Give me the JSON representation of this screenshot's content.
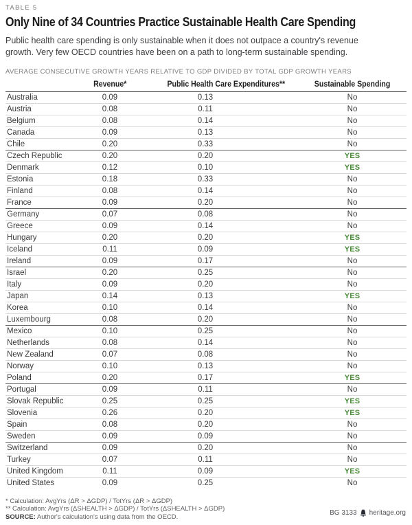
{
  "page": {
    "table_label": "TABLE 5",
    "title": "Only Nine of 34 Countries Practice Sustainable Health Care Spending",
    "subtitle_lines": [
      "Public health care spending is only sustainable when it does not outpace a country's revenue",
      "growth. Very few OECD countries have been on a path to long-term sustainable spending."
    ],
    "eyebrow": "AVERAGE CONSECUTIVE GROWTH YEARS RELATIVE TO GDP DIVIDED BY TOTAL GDP GROWTH YEARS"
  },
  "chart_data": {
    "type": "table",
    "title": "Only Nine of 34 Countries Practice Sustainable Health Care Spending",
    "subtitle": "Public health care spending is only sustainable when it does not outpace a country's revenue growth. Very few OECD countries have been on a path to long-term sustainable spending.",
    "metric_note": "Average consecutive growth years relative to GDP divided by total GDP growth years",
    "columns": [
      "",
      "Revenue*",
      "Public Health Care Expenditures**",
      "Sustainable Spending"
    ],
    "rows": [
      [
        "Australia",
        "0.09",
        "0.13",
        "No"
      ],
      [
        "Austria",
        "0.08",
        "0.11",
        "No"
      ],
      [
        "Belgium",
        "0.08",
        "0.14",
        "No"
      ],
      [
        "Canada",
        "0.09",
        "0.13",
        "No"
      ],
      [
        "Chile",
        "0.20",
        "0.33",
        "No"
      ],
      [
        "Czech Republic",
        "0.20",
        "0.20",
        "YES"
      ],
      [
        "Denmark",
        "0.12",
        "0.10",
        "YES"
      ],
      [
        "Estonia",
        "0.18",
        "0.33",
        "No"
      ],
      [
        "Finland",
        "0.08",
        "0.14",
        "No"
      ],
      [
        "France",
        "0.09",
        "0.20",
        "No"
      ],
      [
        "Germany",
        "0.07",
        "0.08",
        "No"
      ],
      [
        "Greece",
        "0.09",
        "0.14",
        "No"
      ],
      [
        "Hungary",
        "0.20",
        "0.20",
        "YES"
      ],
      [
        "Iceland",
        "0.11",
        "0.09",
        "YES"
      ],
      [
        "Ireland",
        "0.09",
        "0.17",
        "No"
      ],
      [
        "Israel",
        "0.20",
        "0.25",
        "No"
      ],
      [
        "Italy",
        "0.09",
        "0.20",
        "No"
      ],
      [
        "Japan",
        "0.14",
        "0.13",
        "YES"
      ],
      [
        "Korea",
        "0.10",
        "0.14",
        "No"
      ],
      [
        "Luxembourg",
        "0.08",
        "0.20",
        "No"
      ],
      [
        "Mexico",
        "0.10",
        "0.25",
        "No"
      ],
      [
        "Netherlands",
        "0.08",
        "0.14",
        "No"
      ],
      [
        "New Zealand",
        "0.07",
        "0.08",
        "No"
      ],
      [
        "Norway",
        "0.10",
        "0.13",
        "No"
      ],
      [
        "Poland",
        "0.20",
        "0.17",
        "YES"
      ],
      [
        "Portugal",
        "0.09",
        "0.11",
        "No"
      ],
      [
        "Slovak Republic",
        "0.25",
        "0.25",
        "YES"
      ],
      [
        "Slovenia",
        "0.26",
        "0.20",
        "YES"
      ],
      [
        "Spain",
        "0.08",
        "0.20",
        "No"
      ],
      [
        "Sweden",
        "0.09",
        "0.09",
        "No"
      ],
      [
        "Switzerland",
        "0.09",
        "0.20",
        "No"
      ],
      [
        "Turkey",
        "0.07",
        "0.11",
        "No"
      ],
      [
        "United Kingdom",
        "0.11",
        "0.09",
        "YES"
      ],
      [
        "United States",
        "0.09",
        "0.25",
        "No"
      ]
    ],
    "group_end_indices": [
      4,
      9,
      14,
      19,
      24,
      29
    ],
    "yes_color": "#4a8b3a",
    "yes_countries": [
      "Czech Republic",
      "Denmark",
      "Hungary",
      "Iceland",
      "Japan",
      "Poland",
      "Slovak Republic",
      "Slovenia",
      "United Kingdom"
    ]
  },
  "footnotes": {
    "line1": "* Calculation: AvgYrs (ΔR > ΔGDP) / TotYrs (ΔR > ΔGDP)",
    "line2": "** Calculation: AvgYrs (ΔSHEALTH > ΔGDP) / TotYrs (ΔSHEALTH > ΔGDP)",
    "source_label": "SOURCE:",
    "source_text": " Author's calculation's using data from the OECD."
  },
  "credit": {
    "id": "BG 3133",
    "site": "heritage.org"
  }
}
